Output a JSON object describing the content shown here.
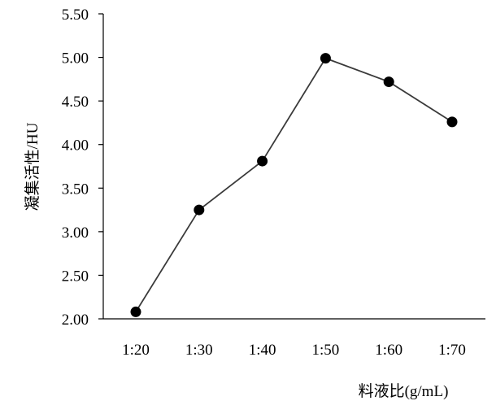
{
  "chart_data": {
    "type": "line",
    "title": "",
    "xlabel": "料液比(g/mL)",
    "ylabel": "凝集活性/HU",
    "categories": [
      "1:20",
      "1:30",
      "1:40",
      "1:50",
      "1:60",
      "1:70"
    ],
    "series": [
      {
        "values": [
          2.08,
          3.25,
          3.81,
          4.99,
          4.72,
          4.26
        ]
      }
    ],
    "ylim": [
      2.0,
      5.5
    ],
    "yticks": [
      "2.00",
      "2.50",
      "3.00",
      "3.50",
      "4.00",
      "4.50",
      "5.00",
      "5.50"
    ],
    "grid": false,
    "legend": "none",
    "colors": {
      "line": "#3a3a3a",
      "marker": "#000000",
      "axis": "#000000"
    }
  }
}
